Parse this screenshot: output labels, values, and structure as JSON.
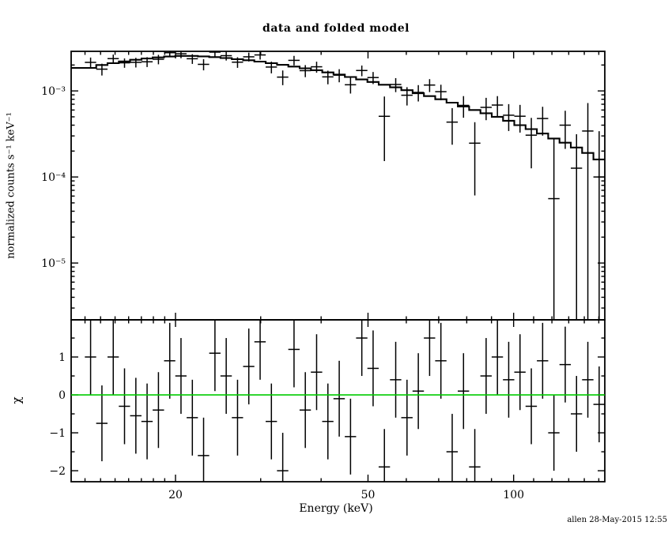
{
  "chart_data": {
    "type": "scatter",
    "title": "data and folded model",
    "xlabel": "Energy (keV)",
    "footer": "allen 28-May-2015 12:55",
    "x_scale": "log",
    "x_log10_range": [
      1.0853,
      2.1885
    ],
    "x_ticks": [
      {
        "v": 20,
        "label": "20"
      },
      {
        "v": 50,
        "label": "50"
      },
      {
        "v": 100,
        "label": "100"
      }
    ],
    "x_minor_ticks": [
      13,
      14,
      15,
      16,
      17,
      18,
      19,
      30,
      40,
      60,
      70,
      80,
      90,
      110,
      120,
      130,
      140,
      150
    ],
    "panels": [
      {
        "name": "spectrum",
        "ylabel": "normalized counts s⁻¹ keV⁻¹",
        "y_scale": "log",
        "ylim_log10": [
          -5.66,
          -2.54
        ],
        "y_ticks": [
          {
            "v": 0.001,
            "label": "10⁻³"
          },
          {
            "v": 0.0001,
            "label": "10⁻⁴"
          },
          {
            "v": 1e-05,
            "label": "10⁻⁵"
          }
        ]
      },
      {
        "name": "residuals",
        "ylabel": "χ",
        "y_scale": "linear",
        "ylim": [
          -2.29,
          1.98
        ],
        "y_ticks": [
          {
            "v": 1,
            "label": "1"
          },
          {
            "v": 0,
            "label": "0"
          },
          {
            "v": -1,
            "label": "−1"
          },
          {
            "v": -2,
            "label": "−2"
          }
        ],
        "y_minor_ticks": [
          -1.5,
          -0.5,
          0.5,
          1.5
        ],
        "zero_line_color": "#00cc00"
      }
    ],
    "series": {
      "energy_kev": [
        13.35,
        14.09,
        14.87,
        15.69,
        16.56,
        17.47,
        18.44,
        19.46,
        20.53,
        21.67,
        22.86,
        24.13,
        25.46,
        26.87,
        28.35,
        29.92,
        31.57,
        33.32,
        35.16,
        37.1,
        39.15,
        41.31,
        43.6,
        46.01,
        48.55,
        51.23,
        54.06,
        57.05,
        60.2,
        63.53,
        67.04,
        70.74,
        74.65,
        78.78,
        83.13,
        87.73,
        92.58,
        97.69,
        103.09,
        108.79,
        114.81,
        121.15,
        127.85,
        134.92,
        142.38,
        150.25
      ],
      "energy_halfwidth_kev": [
        0.36,
        0.38,
        0.4,
        0.42,
        0.45,
        0.47,
        0.5,
        0.52,
        0.55,
        0.58,
        0.62,
        0.65,
        0.69,
        0.72,
        0.76,
        0.81,
        0.85,
        0.9,
        0.95,
        1.0,
        1.06,
        1.11,
        1.18,
        1.24,
        1.31,
        1.38,
        1.46,
        1.54,
        1.63,
        1.72,
        1.81,
        1.91,
        2.02,
        2.13,
        2.25,
        2.37,
        2.5,
        2.64,
        2.78,
        2.94,
        3.1,
        3.27,
        3.45,
        3.64,
        3.85,
        4.06
      ],
      "counts": [
        0.002146,
        0.00179,
        0.002373,
        0.002121,
        0.002148,
        0.00218,
        0.002332,
        0.002781,
        0.002703,
        0.002366,
        0.002036,
        0.002823,
        0.002567,
        0.002158,
        0.002491,
        0.002619,
        0.001894,
        0.001447,
        0.002266,
        0.00172,
        0.001907,
        0.001456,
        0.001524,
        0.001179,
        0.001727,
        0.00143,
        0.000507,
        0.001188,
        0.000891,
        0.000961,
        0.00117,
        0.00098,
        0.000434,
        0.000679,
        0.000247,
        0.000644,
        0.000685,
        0.000522,
        0.000508,
        0.000306,
        0.000478,
        5.6e-05,
        0.0004,
        0.0001265,
        0.000342,
        0.0001
      ],
      "counts_err": [
        0.000296,
        0.00028,
        0.000273,
        0.000264,
        0.000276,
        0.000286,
        0.000294,
        0.000301,
        0.000306,
        0.000306,
        0.000302,
        0.000321,
        0.000313,
        0.000304,
        0.000295,
        0.000307,
        0.000294,
        0.000281,
        0.000288,
        0.000275,
        0.000278,
        0.000262,
        0.000264,
        0.000247,
        0.000245,
        0.000229,
        0.000354,
        0.00022,
        0.000214,
        0.000207,
        0.0002,
        0.0002,
        0.000197,
        0.000191,
        0.000186,
        0.000187,
        0.000185,
        0.00018,
        0.00018,
        0.00018,
        0.000176,
        0.000224,
        0.000188,
        0.000187,
        0.00038,
        0.00024
      ],
      "model": [
        0.00185,
        0.002,
        0.0021,
        0.0022,
        0.0023,
        0.00238,
        0.00245,
        0.00251,
        0.00255,
        0.00255,
        0.00252,
        0.00247,
        0.00241,
        0.00234,
        0.00227,
        0.00219,
        0.0021,
        0.00201,
        0.00192,
        0.00183,
        0.00174,
        0.00164,
        0.00155,
        0.00145,
        0.00136,
        0.00127,
        0.00118,
        0.0011,
        0.00102,
        0.00094,
        0.00087,
        0.0008,
        0.00073,
        0.00066,
        0.0006,
        0.00055,
        0.0005,
        0.00045,
        0.0004,
        0.00036,
        0.00032,
        0.00028,
        0.00025,
        0.00022,
        0.00019,
        0.00016
      ],
      "chi": [
        1.0,
        -0.75,
        1.0,
        -0.3,
        -0.55,
        -0.7,
        -0.4,
        0.9,
        0.5,
        -0.6,
        -1.6,
        1.1,
        0.5,
        -0.6,
        0.75,
        1.4,
        -0.7,
        -2.0,
        1.2,
        -0.4,
        0.6,
        -0.7,
        -0.1,
        -1.1,
        1.5,
        0.7,
        -1.9,
        0.4,
        -0.6,
        0.1,
        1.5,
        0.9,
        -1.5,
        0.1,
        -1.9,
        0.5,
        1.0,
        0.4,
        0.6,
        -0.3,
        0.9,
        -1.0,
        0.8,
        -0.5,
        0.4,
        -0.25
      ],
      "chi_err": 1
    },
    "colors": {
      "data": "#000000",
      "model": "#000000",
      "frame": "#000000"
    }
  }
}
